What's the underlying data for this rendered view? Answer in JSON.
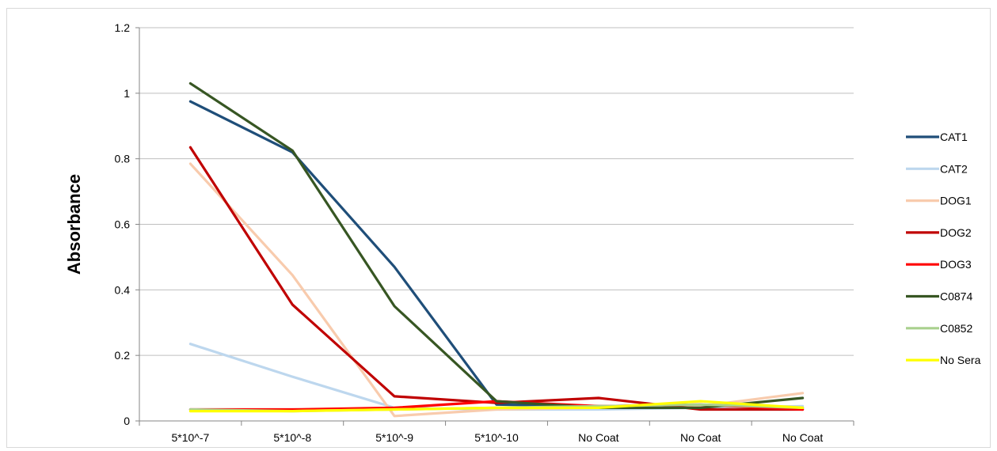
{
  "chart_data": {
    "type": "line",
    "title": "",
    "xlabel": "",
    "ylabel": "Absorbance",
    "ylim": [
      0,
      1.2
    ],
    "yticks": [
      "0",
      "0.2",
      "0.4",
      "0.6",
      "0.8",
      "1",
      "1.2"
    ],
    "ytick_values": [
      0,
      0.2,
      0.4,
      0.6,
      0.8,
      1.0,
      1.2
    ],
    "categories": [
      "5*10^-7",
      "5*10^-8",
      "5*10^-9",
      "5*10^-10",
      "No Coat",
      "No Coat",
      "No Coat"
    ],
    "grid": "horizontal",
    "legend_position": "right",
    "series": [
      {
        "name": "CAT1",
        "color": "#1f4e79",
        "values": [
          0.975,
          0.82,
          0.47,
          0.05,
          0.045,
          0.04,
          0.04
        ]
      },
      {
        "name": "CAT2",
        "color": "#bdd7ee",
        "values": [
          0.235,
          0.135,
          0.04,
          0.035,
          0.035,
          0.04,
          0.045
        ]
      },
      {
        "name": "DOG1",
        "color": "#f8cbad",
        "values": [
          0.785,
          0.445,
          0.015,
          0.035,
          0.04,
          0.045,
          0.085
        ]
      },
      {
        "name": "DOG2",
        "color": "#c00000",
        "values": [
          0.835,
          0.355,
          0.075,
          0.055,
          0.07,
          0.035,
          0.035
        ]
      },
      {
        "name": "DOG3",
        "color": "#ff0000",
        "values": [
          0.035,
          0.035,
          0.04,
          0.06,
          0.045,
          0.05,
          0.035
        ]
      },
      {
        "name": "C0874",
        "color": "#375623",
        "values": [
          1.03,
          0.825,
          0.35,
          0.06,
          0.04,
          0.04,
          0.07
        ]
      },
      {
        "name": "C0852",
        "color": "#a9d18e",
        "values": [
          0.035,
          0.03,
          0.035,
          0.04,
          0.045,
          0.05,
          0.04
        ]
      },
      {
        "name": "No Sera",
        "color": "#ffff00",
        "values": [
          0.03,
          0.03,
          0.035,
          0.04,
          0.04,
          0.06,
          0.04
        ]
      }
    ]
  }
}
